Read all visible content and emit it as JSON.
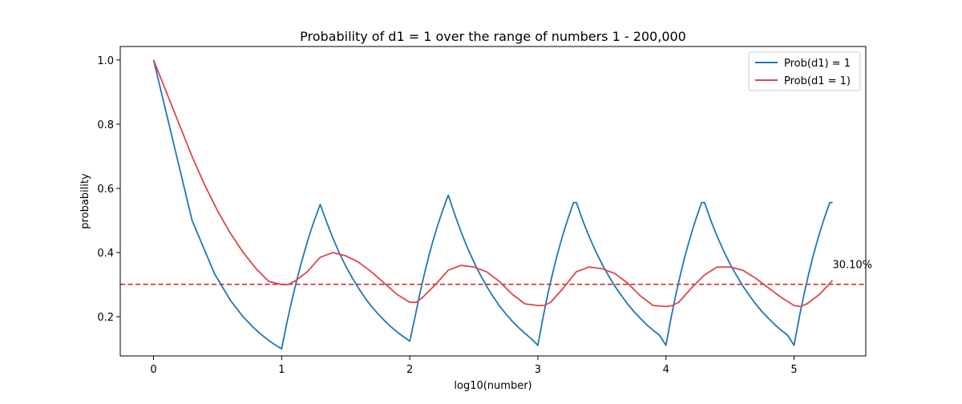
{
  "chart_data": {
    "type": "line",
    "title": "Probability of d1 = 1 over the range of numbers 1 - 200,000",
    "xlabel": "log10(number)",
    "ylabel": "probability",
    "xlim": [
      -0.26,
      5.56
    ],
    "ylim": [
      0.078,
      1.042
    ],
    "xticks": [
      0,
      1,
      2,
      3,
      4,
      5
    ],
    "yticks": [
      0.2,
      0.4,
      0.6,
      0.8,
      1.0
    ],
    "xtick_labels": [
      "0",
      "1",
      "2",
      "3",
      "4",
      "5"
    ],
    "ytick_labels": [
      "0.2",
      "0.4",
      "0.6",
      "0.8",
      "1.0"
    ],
    "grid": false,
    "legend_position": "top-right",
    "reference_line": {
      "y": 0.301,
      "style": "dashed",
      "color": "#d62728",
      "label": "30.10%",
      "label_x": 5.3
    },
    "series": [
      {
        "name": "Prob(d1) = 1",
        "color": "#1f77b4",
        "x": [
          0,
          0.301,
          0.477,
          0.602,
          0.699,
          0.778,
          0.845,
          0.903,
          0.954,
          1.0,
          1.041,
          1.079,
          1.114,
          1.146,
          1.176,
          1.204,
          1.23,
          1.255,
          1.279,
          1.301,
          1.35,
          1.4,
          1.45,
          1.5,
          1.55,
          1.6,
          1.65,
          1.7,
          1.75,
          1.8,
          1.85,
          1.9,
          1.95,
          2.0,
          2.0414,
          2.0792,
          2.1139,
          2.1461,
          2.1761,
          2.2041,
          2.2304,
          2.2553,
          2.2788,
          2.301,
          2.35,
          2.4,
          2.45,
          2.5,
          2.55,
          2.6,
          2.65,
          2.7,
          2.75,
          2.8,
          2.85,
          2.9,
          2.95,
          3.0,
          3.0414,
          3.0792,
          3.1139,
          3.1461,
          3.1761,
          3.2041,
          3.2304,
          3.2553,
          3.2788,
          3.301,
          3.35,
          3.4,
          3.45,
          3.5,
          3.55,
          3.6,
          3.65,
          3.7,
          3.75,
          3.8,
          3.85,
          3.9,
          3.95,
          4.0,
          4.0414,
          4.0792,
          4.1139,
          4.1461,
          4.1761,
          4.2041,
          4.2304,
          4.2553,
          4.2788,
          4.301,
          4.35,
          4.4,
          4.45,
          4.5,
          4.55,
          4.6,
          4.65,
          4.7,
          4.75,
          4.8,
          4.85,
          4.9,
          4.95,
          5.0,
          5.0414,
          5.0792,
          5.1139,
          5.1461,
          5.1761,
          5.2041,
          5.2304,
          5.2553,
          5.2788,
          5.301
        ],
        "y": [
          1.0,
          0.5,
          0.333,
          0.25,
          0.2,
          0.167,
          0.143,
          0.125,
          0.111,
          0.1,
          0.182,
          0.25,
          0.308,
          0.357,
          0.4,
          0.438,
          0.471,
          0.5,
          0.526,
          0.55,
          0.496,
          0.445,
          0.399,
          0.358,
          0.322,
          0.289,
          0.259,
          0.233,
          0.21,
          0.189,
          0.17,
          0.153,
          0.138,
          0.124,
          0.2,
          0.273,
          0.333,
          0.385,
          0.429,
          0.467,
          0.5,
          0.529,
          0.556,
          0.579,
          0.52,
          0.465,
          0.415,
          0.371,
          0.331,
          0.295,
          0.263,
          0.234,
          0.209,
          0.186,
          0.166,
          0.148,
          0.131,
          0.111,
          0.2,
          0.273,
          0.333,
          0.385,
          0.429,
          0.467,
          0.5,
          0.529,
          0.556,
          0.556,
          0.5,
          0.45,
          0.405,
          0.365,
          0.329,
          0.296,
          0.267,
          0.24,
          0.216,
          0.195,
          0.175,
          0.158,
          0.142,
          0.111,
          0.2,
          0.273,
          0.333,
          0.385,
          0.429,
          0.467,
          0.5,
          0.529,
          0.556,
          0.556,
          0.5,
          0.45,
          0.405,
          0.365,
          0.329,
          0.296,
          0.267,
          0.24,
          0.216,
          0.195,
          0.175,
          0.158,
          0.142,
          0.111,
          0.2,
          0.273,
          0.333,
          0.385,
          0.429,
          0.467,
          0.5,
          0.529,
          0.556,
          0.556
        ]
      },
      {
        "name": "Prob(d1 = 1)",
        "color": "#d9474a",
        "x": [
          0,
          0.1,
          0.2,
          0.3,
          0.4,
          0.5,
          0.6,
          0.7,
          0.8,
          0.9,
          0.95,
          1.0,
          1.05,
          1.1,
          1.2,
          1.3,
          1.4,
          1.5,
          1.6,
          1.7,
          1.8,
          1.9,
          2.0,
          2.05,
          2.1,
          2.2,
          2.3,
          2.4,
          2.5,
          2.6,
          2.7,
          2.8,
          2.9,
          3.0,
          3.05,
          3.1,
          3.2,
          3.3,
          3.4,
          3.5,
          3.6,
          3.7,
          3.8,
          3.9,
          4.0,
          4.05,
          4.1,
          4.2,
          4.3,
          4.4,
          4.5,
          4.6,
          4.7,
          4.8,
          4.9,
          5.0,
          5.05,
          5.1,
          5.2,
          5.3
        ],
        "y": [
          1.0,
          0.9,
          0.8,
          0.7,
          0.61,
          0.53,
          0.46,
          0.4,
          0.35,
          0.31,
          0.305,
          0.3,
          0.3,
          0.31,
          0.34,
          0.385,
          0.4,
          0.39,
          0.37,
          0.34,
          0.305,
          0.27,
          0.245,
          0.245,
          0.26,
          0.3,
          0.345,
          0.36,
          0.355,
          0.34,
          0.31,
          0.27,
          0.24,
          0.235,
          0.235,
          0.245,
          0.29,
          0.34,
          0.355,
          0.35,
          0.335,
          0.305,
          0.265,
          0.235,
          0.232,
          0.235,
          0.245,
          0.29,
          0.33,
          0.355,
          0.355,
          0.345,
          0.32,
          0.29,
          0.26,
          0.235,
          0.232,
          0.24,
          0.27,
          0.313
        ]
      }
    ]
  }
}
